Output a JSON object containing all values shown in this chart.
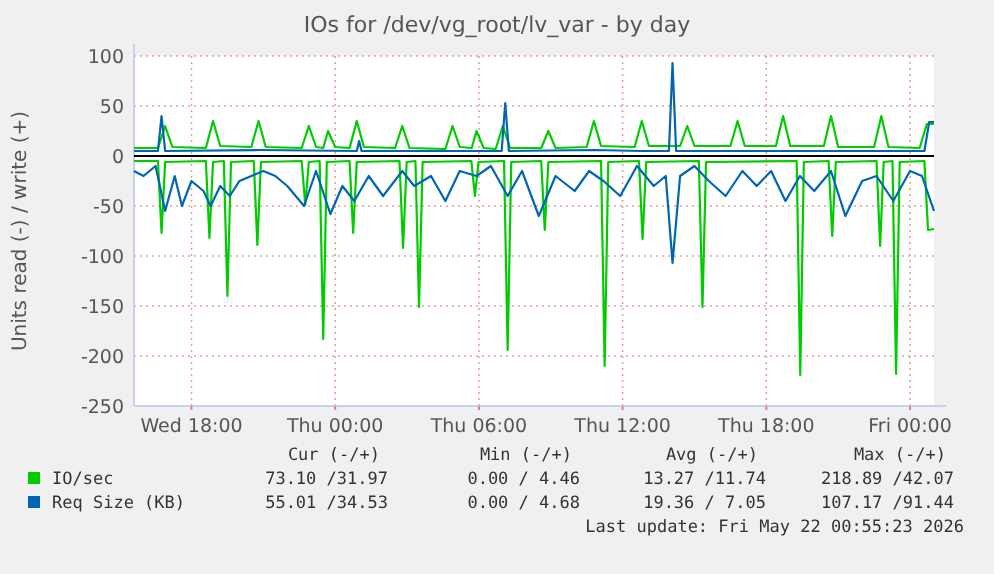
{
  "chart_data": {
    "type": "line",
    "title": "IOs for /dev/vg_root/lv_var - by day",
    "ylabel": "Units read (-) / write (+)",
    "xlim": [
      "2026-05-20T15:36",
      "2026-05-22T01:00"
    ],
    "xticks": [
      {
        "value": "2026-05-20T18:00",
        "label": "Wed 18:00"
      },
      {
        "value": "2026-05-21T00:00",
        "label": "Thu 00:00"
      },
      {
        "value": "2026-05-21T06:00",
        "label": "Thu 06:00"
      },
      {
        "value": "2026-05-21T12:00",
        "label": "Thu 12:00"
      },
      {
        "value": "2026-05-21T18:00",
        "label": "Thu 18:00"
      },
      {
        "value": "2026-05-22T00:00",
        "label": "Fri 00:00"
      }
    ],
    "ylim": [
      -250,
      100
    ],
    "yticks": [
      -250,
      -200,
      -150,
      -100,
      -50,
      0,
      50,
      100
    ],
    "grid": true,
    "legend": "bottom",
    "ref_lines": [
      {
        "axis": "y",
        "value": 0,
        "color": "#000000"
      }
    ],
    "annotations": [
      "Cur (-/+)",
      "Min (-/+)",
      "Avg (-/+)",
      "Max (-/+)",
      "73.10 /31.97",
      "0.00 / 4.46",
      "13.27 /11.74",
      "218.89 /42.07",
      "55.01 /34.53",
      "0.00 / 4.68",
      "19.36 / 7.05",
      "107.17 /91.44",
      "Last update: Fri May 22 00:55:23 2026"
    ],
    "series": [
      {
        "color": "#00cc00",
        "x": [
          "2026-05-20T15:36",
          "2026-05-20T16:36",
          "2026-05-20T16:45",
          "2026-05-20T16:54",
          "2026-05-20T18:36",
          "2026-05-20T18:45",
          "2026-05-20T18:54",
          "2026-05-20T19:21",
          "2026-05-20T19:30",
          "2026-05-20T19:39",
          "2026-05-20T20:36",
          "2026-05-20T20:45",
          "2026-05-20T20:54",
          "2026-05-20T22:36",
          "2026-05-20T22:45",
          "2026-05-20T22:54",
          "2026-05-20T23:21",
          "2026-05-20T23:30",
          "2026-05-20T23:39",
          "2026-05-21T00:36",
          "2026-05-21T00:45",
          "2026-05-21T00:54",
          "2026-05-21T02:41",
          "2026-05-21T02:50",
          "2026-05-21T02:59",
          "2026-05-21T03:21",
          "2026-05-21T03:30",
          "2026-05-21T03:39",
          "2026-05-21T05:41",
          "2026-05-21T05:50",
          "2026-05-21T05:59",
          "2026-05-21T07:03",
          "2026-05-21T07:12",
          "2026-05-21T07:21",
          "2026-05-21T08:36",
          "2026-05-21T08:45",
          "2026-05-21T08:54",
          "2026-05-21T11:06",
          "2026-05-21T11:15",
          "2026-05-21T11:24",
          "2026-05-21T12:41",
          "2026-05-21T12:50",
          "2026-05-21T12:59",
          "2026-05-21T15:11",
          "2026-05-21T15:20",
          "2026-05-21T15:29",
          "2026-05-21T19:16",
          "2026-05-21T19:25",
          "2026-05-21T19:34",
          "2026-05-21T20:36",
          "2026-05-21T20:45",
          "2026-05-21T20:54",
          "2026-05-21T22:36",
          "2026-05-21T22:45",
          "2026-05-21T22:54",
          "2026-05-21T23:16",
          "2026-05-21T23:25",
          "2026-05-21T23:34",
          "2026-05-22T00:36",
          "2026-05-22T00:45",
          "2026-05-22T01:00"
        ],
        "values": [
          -5,
          -5,
          -77,
          -6,
          -5,
          -82,
          -6,
          -5,
          -140,
          -6,
          -5,
          -89,
          -6,
          -5,
          -49,
          -6,
          -5,
          -183,
          -6,
          -5,
          -77,
          -6,
          -5,
          -92,
          -6,
          -5,
          -151,
          -6,
          -5,
          -40,
          -6,
          -5,
          -194,
          -6,
          -5,
          -74,
          -6,
          -5,
          -210,
          -6,
          -5,
          -83,
          -6,
          -5,
          -151,
          -6,
          -5,
          -219,
          -6,
          -5,
          -80,
          -6,
          -5,
          -90,
          -6,
          -5,
          -218,
          -6,
          -5,
          -74,
          -73
        ]
      },
      {
        "name": "IO/sec",
        "color": "#00cc00",
        "x": [
          "2026-05-20T15:36",
          "2026-05-20T16:36",
          "2026-05-20T16:54",
          "2026-05-20T17:12",
          "2026-05-20T18:36",
          "2026-05-20T18:54",
          "2026-05-20T19:12",
          "2026-05-20T20:30",
          "2026-05-20T20:48",
          "2026-05-20T21:06",
          "2026-05-20T22:36",
          "2026-05-20T22:54",
          "2026-05-20T23:12",
          "2026-05-20T23:30",
          "2026-05-20T23:42",
          "2026-05-21T00:00",
          "2026-05-21T00:36",
          "2026-05-21T00:54",
          "2026-05-21T01:12",
          "2026-05-21T02:30",
          "2026-05-21T02:48",
          "2026-05-21T03:06",
          "2026-05-21T04:36",
          "2026-05-21T04:54",
          "2026-05-21T05:12",
          "2026-05-21T05:42",
          "2026-05-21T05:54",
          "2026-05-21T06:12",
          "2026-05-21T06:42",
          "2026-05-21T07:00",
          "2026-05-21T07:18",
          "2026-05-21T08:36",
          "2026-05-21T08:54",
          "2026-05-21T09:12",
          "2026-05-21T10:30",
          "2026-05-21T10:48",
          "2026-05-21T11:06",
          "2026-05-21T12:30",
          "2026-05-21T12:48",
          "2026-05-21T13:06",
          "2026-05-21T14:24",
          "2026-05-21T14:42",
          "2026-05-21T15:00",
          "2026-05-21T16:30",
          "2026-05-21T16:48",
          "2026-05-21T17:06",
          "2026-05-21T18:24",
          "2026-05-21T18:42",
          "2026-05-21T19:00",
          "2026-05-21T20:24",
          "2026-05-21T20:42",
          "2026-05-21T21:00",
          "2026-05-21T22:30",
          "2026-05-21T22:48",
          "2026-05-21T23:06",
          "2026-05-22T00:24",
          "2026-05-22T00:42",
          "2026-05-22T01:00"
        ],
        "values": [
          8,
          8,
          30,
          9,
          8,
          35,
          10,
          9,
          35,
          9,
          8,
          30,
          9,
          8,
          25,
          9,
          8,
          35,
          9,
          8,
          30,
          8,
          7,
          30,
          9,
          8,
          25,
          8,
          7,
          30,
          8,
          8,
          25,
          8,
          9,
          35,
          10,
          9,
          35,
          10,
          10,
          30,
          10,
          10,
          35,
          10,
          10,
          40,
          10,
          10,
          40,
          9,
          9,
          40,
          9,
          8,
          32,
          32
        ]
      },
      {
        "color": "#0066b3",
        "x": [
          "2026-05-20T15:36",
          "2026-05-20T16:00",
          "2026-05-20T16:30",
          "2026-05-20T16:54",
          "2026-05-20T17:18",
          "2026-05-20T17:36",
          "2026-05-20T18:00",
          "2026-05-20T18:30",
          "2026-05-20T18:48",
          "2026-05-20T19:12",
          "2026-05-20T19:36",
          "2026-05-20T20:00",
          "2026-05-20T20:30",
          "2026-05-20T21:00",
          "2026-05-20T21:30",
          "2026-05-20T22:00",
          "2026-05-20T22:42",
          "2026-05-20T23:12",
          "2026-05-20T23:48",
          "2026-05-21T00:18",
          "2026-05-21T00:48",
          "2026-05-21T01:24",
          "2026-05-21T02:00",
          "2026-05-21T02:48",
          "2026-05-21T03:18",
          "2026-05-21T04:00",
          "2026-05-21T04:36",
          "2026-05-21T05:12",
          "2026-05-21T05:54",
          "2026-05-21T06:30",
          "2026-05-21T07:12",
          "2026-05-21T07:48",
          "2026-05-21T08:30",
          "2026-05-21T09:12",
          "2026-05-21T10:00",
          "2026-05-21T10:36",
          "2026-05-21T11:12",
          "2026-05-21T11:54",
          "2026-05-21T12:36",
          "2026-05-21T13:18",
          "2026-05-21T13:48",
          "2026-05-21T14:05",
          "2026-05-21T14:24",
          "2026-05-21T15:00",
          "2026-05-21T15:36",
          "2026-05-21T16:18",
          "2026-05-21T17:00",
          "2026-05-21T17:36",
          "2026-05-21T18:12",
          "2026-05-21T18:48",
          "2026-05-21T19:24",
          "2026-05-21T20:00",
          "2026-05-21T20:42",
          "2026-05-21T21:18",
          "2026-05-21T22:00",
          "2026-05-21T22:36",
          "2026-05-21T23:18",
          "2026-05-22T00:00",
          "2026-05-22T00:30",
          "2026-05-22T01:00"
        ],
        "values": [
          -15,
          -20,
          -10,
          -55,
          -20,
          -50,
          -25,
          -35,
          -50,
          -30,
          -40,
          -25,
          -20,
          -15,
          -20,
          -30,
          -50,
          -15,
          -58,
          -30,
          -45,
          -20,
          -40,
          -15,
          -30,
          -20,
          -45,
          -15,
          -20,
          -10,
          -40,
          -15,
          -60,
          -20,
          -35,
          -15,
          -25,
          -40,
          -10,
          -30,
          -20,
          -107,
          -20,
          -10,
          -25,
          -40,
          -15,
          -30,
          -15,
          -45,
          -20,
          -35,
          -15,
          -60,
          -25,
          -20,
          -45,
          -15,
          -20,
          -55
        ]
      },
      {
        "name": "Req Size (KB)",
        "color": "#0066b3",
        "x": [
          "2026-05-20T15:36",
          "2026-05-20T16:36",
          "2026-05-20T16:45",
          "2026-05-20T16:54",
          "2026-05-20T20:48",
          "2026-05-21T00:54",
          "2026-05-21T01:00",
          "2026-05-21T01:06",
          "2026-05-21T04:54",
          "2026-05-21T06:57",
          "2026-05-21T07:06",
          "2026-05-21T07:15",
          "2026-05-21T10:48",
          "2026-05-21T12:48",
          "2026-05-21T13:56",
          "2026-05-21T14:05",
          "2026-05-21T14:14",
          "2026-05-21T16:48",
          "2026-05-21T20:42",
          "2026-05-22T00:36",
          "2026-05-22T00:48",
          "2026-05-22T01:00"
        ],
        "values": [
          5,
          5,
          40,
          5,
          6,
          5,
          15,
          5,
          5,
          5,
          53,
          5,
          6,
          5,
          5,
          93,
          5,
          5,
          5,
          5,
          34,
          34
        ]
      }
    ]
  }
}
